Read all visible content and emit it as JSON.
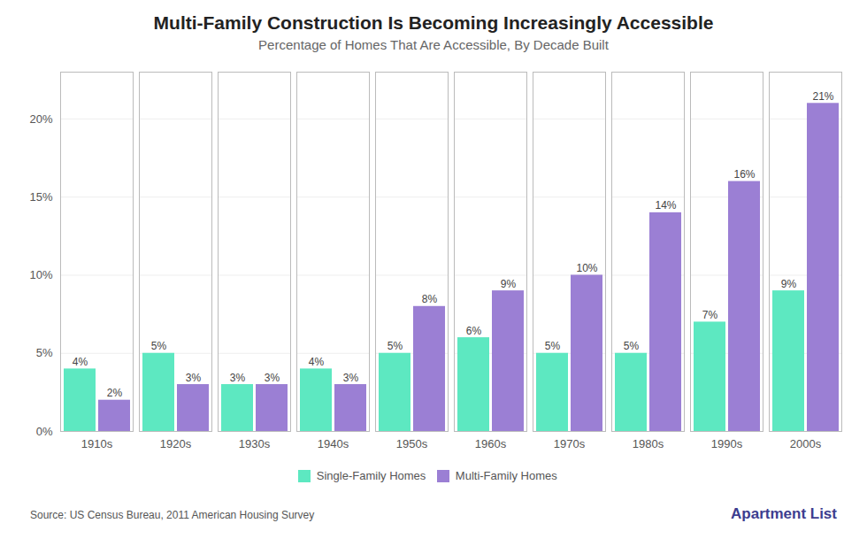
{
  "chart_data": {
    "type": "bar",
    "title": "Multi-Family Construction Is Becoming Increasingly Accessible",
    "subtitle": "Percentage of Homes That Are Accessible, By Decade Built",
    "categories": [
      "1910s",
      "1920s",
      "1930s",
      "1940s",
      "1950s",
      "1960s",
      "1970s",
      "1980s",
      "1990s",
      "2000s"
    ],
    "series": [
      {
        "name": "Single-Family Homes",
        "color": "#5de8c1",
        "values": [
          4,
          5,
          3,
          4,
          5,
          6,
          5,
          5,
          7,
          9
        ],
        "value_labels": [
          "4%",
          "5%",
          "3%",
          "4%",
          "5%",
          "6%",
          "5%",
          "5%",
          "7%",
          "9%"
        ]
      },
      {
        "name": "Multi-Family Homes",
        "color": "#9b7fd4",
        "values": [
          2,
          3,
          3,
          3,
          8,
          9,
          10,
          14,
          16,
          21
        ],
        "value_labels": [
          "2%",
          "3%",
          "3%",
          "3%",
          "8%",
          "9%",
          "10%",
          "14%",
          "16%",
          "21%"
        ]
      }
    ],
    "ylim": [
      0,
      23
    ],
    "yticks": [
      {
        "value": 0,
        "label": "0%"
      },
      {
        "value": 5,
        "label": "5%"
      },
      {
        "value": 10,
        "label": "10%"
      },
      {
        "value": 15,
        "label": "15%"
      },
      {
        "value": 20,
        "label": "20%"
      }
    ],
    "grid": true,
    "legend": "bottom",
    "data_labels": true,
    "annotations": [
      "Source: US Census Bureau, 2011 American Housing Survey",
      "Apartment List"
    ]
  }
}
